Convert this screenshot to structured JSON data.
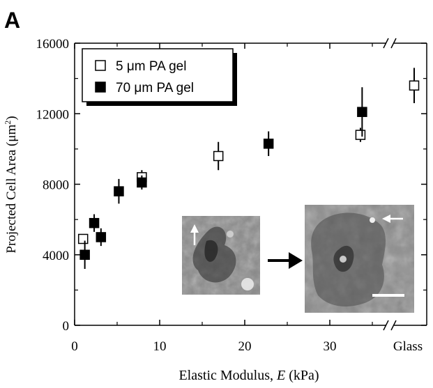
{
  "panel_label": "A",
  "chart_data": {
    "type": "scatter",
    "title": "",
    "xlabel_prefix": "Elastic Modulus, ",
    "xlabel_var": "E",
    "xlabel_suffix": " (kPa)",
    "ylabel_main": "Projected Cell Area (μm",
    "ylabel_sup": "2",
    "ylabel_close": ")",
    "xlim": [
      0,
      40
    ],
    "ylim": [
      0,
      16000
    ],
    "x_ticks": [
      0,
      10,
      20,
      30
    ],
    "x_extra_tick_label": "Glass",
    "y_ticks": [
      0,
      4000,
      8000,
      12000,
      16000
    ],
    "axis_break": "between 35 and Glass",
    "legend_position": "top-left",
    "series": [
      {
        "name": "5 μm PA gel",
        "marker": "open-square",
        "points": [
          {
            "x": 1,
            "y": 4900,
            "err": 0
          },
          {
            "x": 7.9,
            "y": 8400,
            "err": 400
          },
          {
            "x": 16.9,
            "y": 9600,
            "err": 800
          },
          {
            "x": 33.6,
            "y": 10800,
            "err": 400
          },
          {
            "x": "Glass",
            "y": 13600,
            "err": 1000
          }
        ]
      },
      {
        "name": "70 μm PA gel",
        "marker": "filled-square",
        "points": [
          {
            "x": 1.2,
            "y": 4000,
            "err": 800
          },
          {
            "x": 2.3,
            "y": 5800,
            "err": 500
          },
          {
            "x": 3.1,
            "y": 5000,
            "err": 500
          },
          {
            "x": 5.2,
            "y": 7600,
            "err": 700
          },
          {
            "x": 7.9,
            "y": 8100,
            "err": 400
          },
          {
            "x": 22.8,
            "y": 10300,
            "err": 700
          },
          {
            "x": 33.8,
            "y": 12100,
            "err": 1400
          }
        ]
      }
    ],
    "inset_images": [
      {
        "name": "small-cell-micrograph",
        "description_icon": "small-spread-cell-image"
      },
      {
        "name": "large-cell-micrograph",
        "description_icon": "large-spread-cell-image"
      }
    ]
  }
}
